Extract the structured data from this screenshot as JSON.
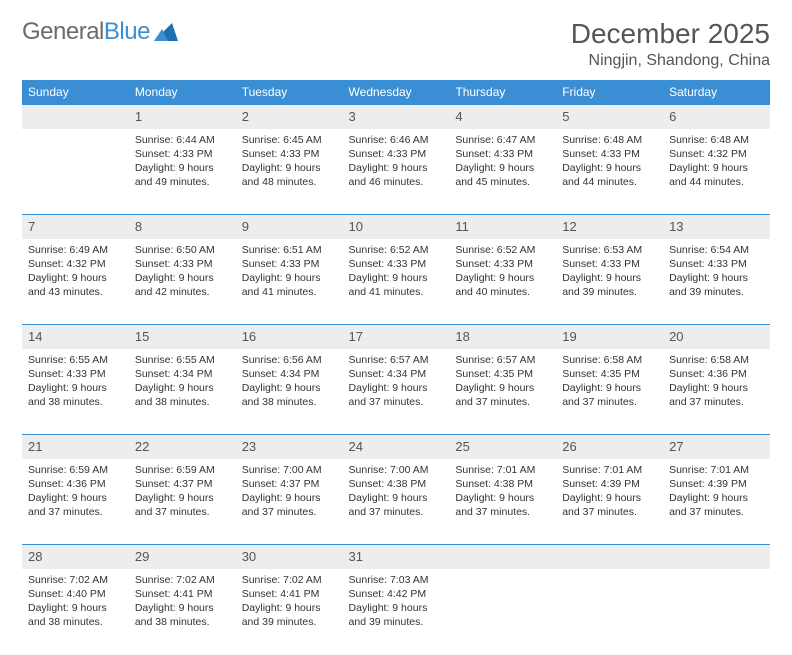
{
  "logo": {
    "general": "General",
    "blue": "Blue"
  },
  "title": "December 2025",
  "location": "Ningjin, Shandong, China",
  "header_color": "#3a8fd4",
  "daynum_bg": "#ededed",
  "weekdays": [
    "Sunday",
    "Monday",
    "Tuesday",
    "Wednesday",
    "Thursday",
    "Friday",
    "Saturday"
  ],
  "weeks": [
    [
      {
        "n": "",
        "sr": "",
        "ss": "",
        "dl": ""
      },
      {
        "n": "1",
        "sr": "Sunrise: 6:44 AM",
        "ss": "Sunset: 4:33 PM",
        "dl": "Daylight: 9 hours and 49 minutes."
      },
      {
        "n": "2",
        "sr": "Sunrise: 6:45 AM",
        "ss": "Sunset: 4:33 PM",
        "dl": "Daylight: 9 hours and 48 minutes."
      },
      {
        "n": "3",
        "sr": "Sunrise: 6:46 AM",
        "ss": "Sunset: 4:33 PM",
        "dl": "Daylight: 9 hours and 46 minutes."
      },
      {
        "n": "4",
        "sr": "Sunrise: 6:47 AM",
        "ss": "Sunset: 4:33 PM",
        "dl": "Daylight: 9 hours and 45 minutes."
      },
      {
        "n": "5",
        "sr": "Sunrise: 6:48 AM",
        "ss": "Sunset: 4:33 PM",
        "dl": "Daylight: 9 hours and 44 minutes."
      },
      {
        "n": "6",
        "sr": "Sunrise: 6:48 AM",
        "ss": "Sunset: 4:32 PM",
        "dl": "Daylight: 9 hours and 44 minutes."
      }
    ],
    [
      {
        "n": "7",
        "sr": "Sunrise: 6:49 AM",
        "ss": "Sunset: 4:32 PM",
        "dl": "Daylight: 9 hours and 43 minutes."
      },
      {
        "n": "8",
        "sr": "Sunrise: 6:50 AM",
        "ss": "Sunset: 4:33 PM",
        "dl": "Daylight: 9 hours and 42 minutes."
      },
      {
        "n": "9",
        "sr": "Sunrise: 6:51 AM",
        "ss": "Sunset: 4:33 PM",
        "dl": "Daylight: 9 hours and 41 minutes."
      },
      {
        "n": "10",
        "sr": "Sunrise: 6:52 AM",
        "ss": "Sunset: 4:33 PM",
        "dl": "Daylight: 9 hours and 41 minutes."
      },
      {
        "n": "11",
        "sr": "Sunrise: 6:52 AM",
        "ss": "Sunset: 4:33 PM",
        "dl": "Daylight: 9 hours and 40 minutes."
      },
      {
        "n": "12",
        "sr": "Sunrise: 6:53 AM",
        "ss": "Sunset: 4:33 PM",
        "dl": "Daylight: 9 hours and 39 minutes."
      },
      {
        "n": "13",
        "sr": "Sunrise: 6:54 AM",
        "ss": "Sunset: 4:33 PM",
        "dl": "Daylight: 9 hours and 39 minutes."
      }
    ],
    [
      {
        "n": "14",
        "sr": "Sunrise: 6:55 AM",
        "ss": "Sunset: 4:33 PM",
        "dl": "Daylight: 9 hours and 38 minutes."
      },
      {
        "n": "15",
        "sr": "Sunrise: 6:55 AM",
        "ss": "Sunset: 4:34 PM",
        "dl": "Daylight: 9 hours and 38 minutes."
      },
      {
        "n": "16",
        "sr": "Sunrise: 6:56 AM",
        "ss": "Sunset: 4:34 PM",
        "dl": "Daylight: 9 hours and 38 minutes."
      },
      {
        "n": "17",
        "sr": "Sunrise: 6:57 AM",
        "ss": "Sunset: 4:34 PM",
        "dl": "Daylight: 9 hours and 37 minutes."
      },
      {
        "n": "18",
        "sr": "Sunrise: 6:57 AM",
        "ss": "Sunset: 4:35 PM",
        "dl": "Daylight: 9 hours and 37 minutes."
      },
      {
        "n": "19",
        "sr": "Sunrise: 6:58 AM",
        "ss": "Sunset: 4:35 PM",
        "dl": "Daylight: 9 hours and 37 minutes."
      },
      {
        "n": "20",
        "sr": "Sunrise: 6:58 AM",
        "ss": "Sunset: 4:36 PM",
        "dl": "Daylight: 9 hours and 37 minutes."
      }
    ],
    [
      {
        "n": "21",
        "sr": "Sunrise: 6:59 AM",
        "ss": "Sunset: 4:36 PM",
        "dl": "Daylight: 9 hours and 37 minutes."
      },
      {
        "n": "22",
        "sr": "Sunrise: 6:59 AM",
        "ss": "Sunset: 4:37 PM",
        "dl": "Daylight: 9 hours and 37 minutes."
      },
      {
        "n": "23",
        "sr": "Sunrise: 7:00 AM",
        "ss": "Sunset: 4:37 PM",
        "dl": "Daylight: 9 hours and 37 minutes."
      },
      {
        "n": "24",
        "sr": "Sunrise: 7:00 AM",
        "ss": "Sunset: 4:38 PM",
        "dl": "Daylight: 9 hours and 37 minutes."
      },
      {
        "n": "25",
        "sr": "Sunrise: 7:01 AM",
        "ss": "Sunset: 4:38 PM",
        "dl": "Daylight: 9 hours and 37 minutes."
      },
      {
        "n": "26",
        "sr": "Sunrise: 7:01 AM",
        "ss": "Sunset: 4:39 PM",
        "dl": "Daylight: 9 hours and 37 minutes."
      },
      {
        "n": "27",
        "sr": "Sunrise: 7:01 AM",
        "ss": "Sunset: 4:39 PM",
        "dl": "Daylight: 9 hours and 37 minutes."
      }
    ],
    [
      {
        "n": "28",
        "sr": "Sunrise: 7:02 AM",
        "ss": "Sunset: 4:40 PM",
        "dl": "Daylight: 9 hours and 38 minutes."
      },
      {
        "n": "29",
        "sr": "Sunrise: 7:02 AM",
        "ss": "Sunset: 4:41 PM",
        "dl": "Daylight: 9 hours and 38 minutes."
      },
      {
        "n": "30",
        "sr": "Sunrise: 7:02 AM",
        "ss": "Sunset: 4:41 PM",
        "dl": "Daylight: 9 hours and 39 minutes."
      },
      {
        "n": "31",
        "sr": "Sunrise: 7:03 AM",
        "ss": "Sunset: 4:42 PM",
        "dl": "Daylight: 9 hours and 39 minutes."
      },
      {
        "n": "",
        "sr": "",
        "ss": "",
        "dl": ""
      },
      {
        "n": "",
        "sr": "",
        "ss": "",
        "dl": ""
      },
      {
        "n": "",
        "sr": "",
        "ss": "",
        "dl": ""
      }
    ]
  ]
}
